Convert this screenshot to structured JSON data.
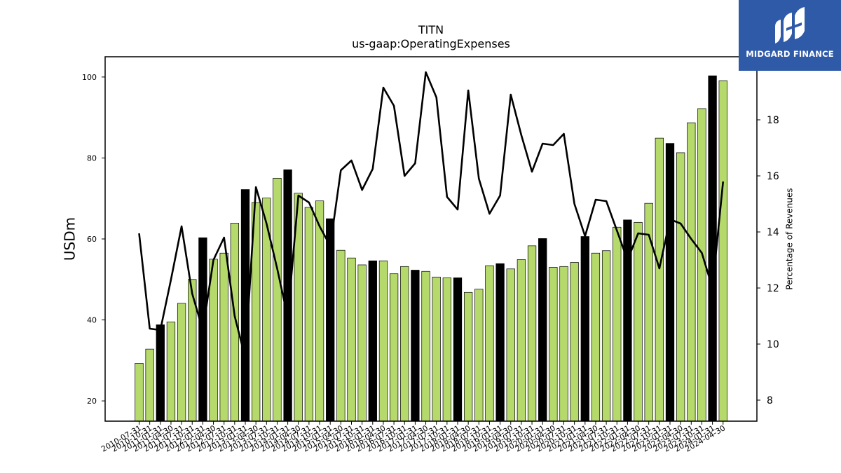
{
  "brand": {
    "name": "MIDGARD FINANCE",
    "icon": "midgard-logo-icon",
    "background": "#2f5aa8"
  },
  "chart_data": {
    "type": "bar",
    "title": "TITN",
    "subtitle": "us-gaap:OperatingExpenses",
    "ylabel": "USDm",
    "ylabel_right": "Percentage of Revenues",
    "ylim": [
      15,
      105
    ],
    "ylim_right": [
      7.25,
      20.25
    ],
    "yticks": [
      20,
      40,
      60,
      80,
      100
    ],
    "yticks_right": [
      8,
      10,
      12,
      14,
      16,
      18
    ],
    "colors": {
      "bar": "#b5d96b",
      "bar_highlight": "#000000",
      "line": "#000000"
    },
    "categories": [
      "2010-07-31",
      "2010-10-31",
      "2011-01-31",
      "2011-04-30",
      "2011-07-31",
      "2011-10-31",
      "2012-01-31",
      "2012-04-30",
      "2012-07-31",
      "2012-10-31",
      "2013-01-31",
      "2013-04-30",
      "2013-07-31",
      "2013-10-31",
      "2014-01-31",
      "2014-04-30",
      "2014-07-31",
      "2014-10-31",
      "2015-01-31",
      "2015-04-30",
      "2015-07-31",
      "2015-10-31",
      "2016-01-31",
      "2016-04-30",
      "2016-07-31",
      "2016-10-31",
      "2017-01-31",
      "2017-04-30",
      "2017-07-31",
      "2017-10-31",
      "2018-01-31",
      "2018-04-30",
      "2018-07-31",
      "2018-10-31",
      "2019-01-31",
      "2019-04-30",
      "2019-07-31",
      "2019-10-31",
      "2020-01-31",
      "2020-04-30",
      "2020-07-31",
      "2020-10-31",
      "2021-01-31",
      "2021-04-30",
      "2021-07-31",
      "2021-10-31",
      "2022-01-31",
      "2022-04-30",
      "2022-07-31",
      "2022-10-31",
      "2023-01-31",
      "2023-04-30",
      "2023-07-31",
      "2023-10-31",
      "2024-01-31",
      "2024-04-30"
    ],
    "series": [
      {
        "type": "bar",
        "values": [
          29.3,
          32.8,
          38.8,
          39.5,
          44.1,
          50.0,
          60.3,
          55.0,
          56.5,
          63.9,
          72.2,
          69.0,
          70.1,
          75.0,
          77.1,
          71.3,
          67.8,
          69.4,
          65.0,
          57.2,
          55.3,
          53.6,
          54.6,
          54.6,
          51.4,
          53.2,
          52.3,
          52.0,
          50.6,
          50.4,
          50.4,
          46.8,
          47.6,
          53.4,
          53.9,
          52.6,
          54.9,
          58.3,
          60.1,
          53.0,
          53.2,
          54.2,
          60.6,
          56.5,
          57.1,
          62.9,
          64.7,
          64.1,
          68.8,
          84.9,
          83.6,
          81.3,
          88.7,
          92.2,
          100.3,
          99.1
        ],
        "highlight": [
          false,
          false,
          true,
          false,
          false,
          false,
          true,
          false,
          false,
          false,
          true,
          false,
          false,
          false,
          true,
          false,
          false,
          false,
          true,
          false,
          false,
          false,
          true,
          false,
          false,
          false,
          true,
          false,
          false,
          false,
          true,
          false,
          false,
          false,
          true,
          false,
          false,
          false,
          true,
          false,
          false,
          false,
          true,
          false,
          false,
          false,
          true,
          false,
          false,
          false,
          true,
          false,
          false,
          false,
          true,
          false
        ]
      },
      {
        "type": "line",
        "axis": "right",
        "values": [
          13.95,
          10.55,
          10.5,
          12.3,
          14.2,
          11.8,
          10.5,
          13.0,
          13.8,
          11.0,
          9.5,
          15.6,
          14.3,
          12.7,
          10.95,
          15.3,
          15.05,
          14.2,
          13.5,
          16.2,
          16.55,
          15.5,
          16.25,
          19.15,
          18.5,
          16.0,
          16.45,
          19.7,
          18.8,
          15.25,
          14.8,
          19.05,
          15.9,
          14.65,
          15.3,
          18.9,
          17.45,
          16.15,
          17.15,
          17.1,
          17.5,
          15.0,
          13.85,
          15.15,
          15.1,
          14.05,
          13.0,
          13.95,
          13.9,
          12.7,
          14.45,
          14.3,
          13.75,
          13.25,
          12.0,
          15.8
        ]
      }
    ]
  }
}
